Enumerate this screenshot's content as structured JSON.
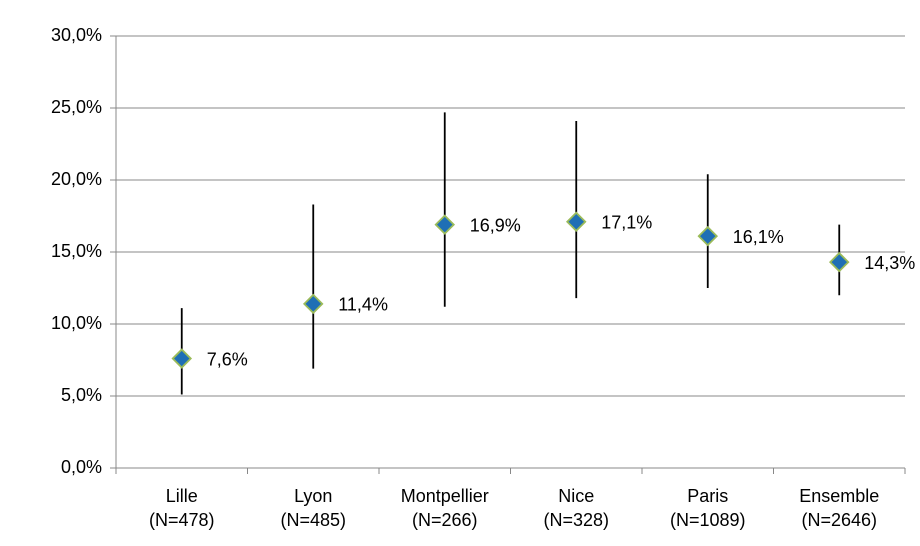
{
  "chart_data": {
    "type": "errorpoint",
    "categories": [
      [
        "Lille",
        "(N=478)"
      ],
      [
        "Lyon",
        "(N=485)"
      ],
      [
        "Montpellier",
        "(N=266)"
      ],
      [
        "Nice",
        "(N=328)"
      ],
      [
        "Paris",
        "(N=1089)"
      ],
      [
        "Ensemble",
        "(N=2646)"
      ]
    ],
    "values": [
      7.6,
      11.4,
      16.9,
      17.1,
      16.1,
      14.3
    ],
    "value_labels": [
      "7,6%",
      "11,4%",
      "16,9%",
      "17,1%",
      "16,1%",
      "14,3%"
    ],
    "error_low": [
      5.1,
      6.9,
      11.2,
      11.8,
      12.5,
      12.0
    ],
    "error_high": [
      11.1,
      18.3,
      24.7,
      24.1,
      20.4,
      16.9
    ],
    "color": "#1f6fb5",
    "marker_edge": "#9bbb59",
    "ylim": [
      0,
      30
    ],
    "yticks": [
      {
        "value": 0,
        "label": "0,0%"
      },
      {
        "value": 5,
        "label": "5,0%"
      },
      {
        "value": 10,
        "label": "10,0%"
      },
      {
        "value": 15,
        "label": "15,0%"
      },
      {
        "value": 20,
        "label": "20,0%"
      },
      {
        "value": 25,
        "label": "25,0%"
      },
      {
        "value": 30,
        "label": "30,0%"
      }
    ],
    "grid": true
  }
}
